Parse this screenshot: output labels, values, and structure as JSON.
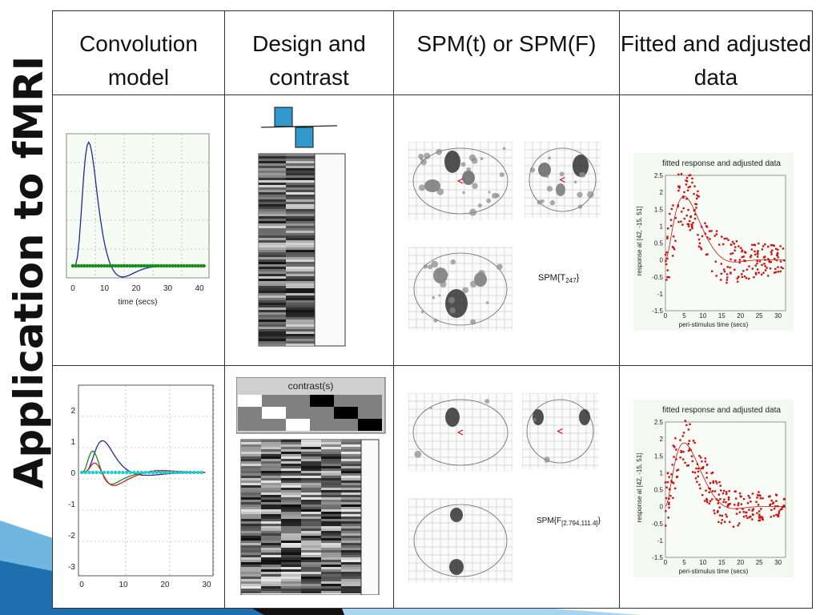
{
  "slide_title": "Application to fMRI",
  "headers": [
    "Convolution model",
    "Design and contrast",
    "SPM(t) or SPM(F)",
    "Fitted and adjusted data"
  ],
  "rows": [
    {
      "conv_xlabel": "time (secs)",
      "conv_xticks": [
        "0",
        "10",
        "20",
        "30",
        "40"
      ],
      "spm_label": "SPM{T",
      "spm_sub": "247",
      "spm_close": "}",
      "fit_title": "fitted response and adjusted data",
      "fit_ylabel": "response at [42, -15, 51]",
      "fit_xlabel": "peri-stimulus time (secs)",
      "fit_yticks": [
        "2.5",
        "2",
        "1.5",
        "1",
        "0.5",
        "0",
        "-0.5",
        "-1",
        "-1.5"
      ],
      "fit_xticks": [
        "0",
        "5",
        "10",
        "15",
        "20",
        "25",
        "30"
      ]
    },
    {
      "conv_yticks": [
        "2",
        "1",
        "0",
        "-1",
        "-2",
        "-3"
      ],
      "conv_xticks": [
        "0",
        "10",
        "20",
        "30"
      ],
      "contrast_title": "contrast(s)",
      "spm_label": "SPM{F",
      "spm_sub": "[2.794,111.4]",
      "spm_close": "}",
      "fit_title": "fitted response and adjusted data",
      "fit_ylabel": "response at [42, -15, 51]",
      "fit_xlabel": "peri-stimulus time (secs)",
      "fit_yticks": [
        "2.5",
        "2",
        "1.5",
        "1",
        "0.5",
        "0",
        "-0.5",
        "-1",
        "-1.5"
      ],
      "fit_xticks": [
        "0",
        "5",
        "10",
        "15",
        "20",
        "25",
        "30"
      ]
    }
  ],
  "colors": {
    "accent": "#3399cc",
    "fit_points": "#cc1111",
    "hrf_blue": "#1f2a9a",
    "onset_green": "#1a8a1a",
    "onset_cyan": "#22cccc"
  }
}
